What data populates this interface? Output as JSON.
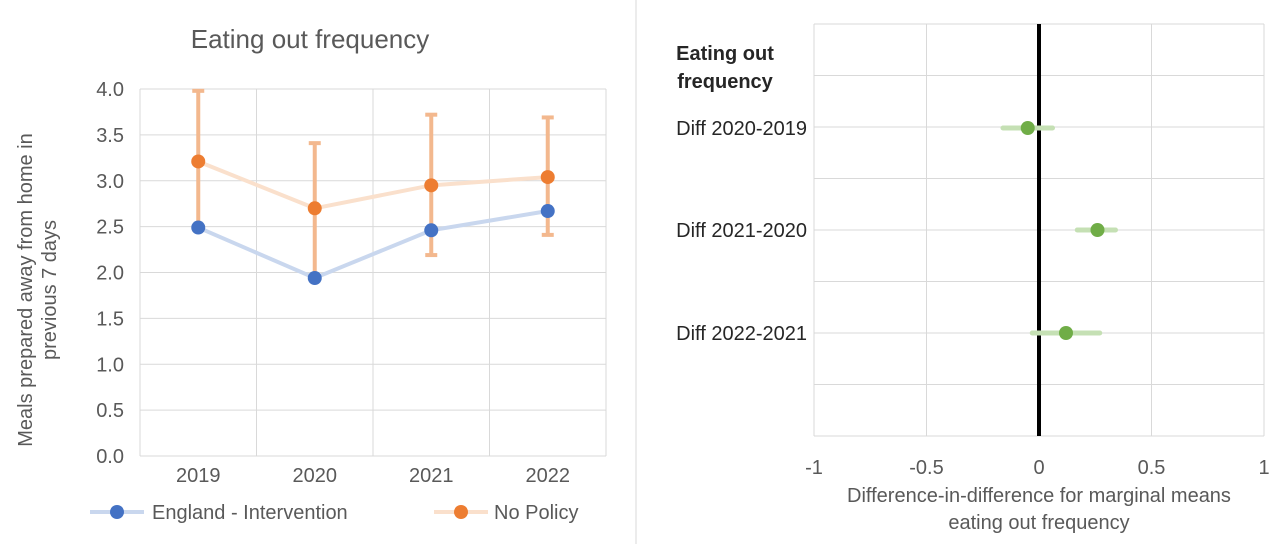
{
  "chart_data": [
    {
      "type": "line",
      "title": "Eating out frequency",
      "xlabel": "",
      "ylabel": "Meals prepared away from home in previous 7 days",
      "ylabel_lines": [
        "Meals prepared away from home in",
        "previous 7 days"
      ],
      "categories": [
        "2019",
        "2020",
        "2021",
        "2022"
      ],
      "ylim": [
        0,
        4
      ],
      "yticks": [
        "0.0",
        "0.5",
        "1.0",
        "1.5",
        "2.0",
        "2.5",
        "3.0",
        "3.5",
        "4.0"
      ],
      "grid": true,
      "legend_position": "bottom",
      "series": [
        {
          "name": "England - Intervention",
          "color": "#4472c4",
          "line_color": "#c9d7ee",
          "values": [
            2.49,
            1.94,
            2.46,
            2.67
          ]
        },
        {
          "name": "No Policy",
          "color": "#ed7d31",
          "line_color": "#fae0cc",
          "values": [
            3.21,
            2.7,
            2.95,
            3.04
          ],
          "error_low": [
            2.47,
            1.96,
            2.19,
            2.41
          ],
          "error_high": [
            3.98,
            3.41,
            3.72,
            3.69
          ],
          "error_color": "#f3b88e"
        }
      ]
    },
    {
      "type": "scatter",
      "title": "Eating out frequency",
      "title_lines": [
        "Eating out",
        "frequency"
      ],
      "xlabel": "Difference-in-difference for marginal means eating out frequency",
      "xlabel_lines": [
        "Difference-in-difference for marginal means",
        "eating out frequency"
      ],
      "categories": [
        "Diff 2020-2019",
        "Diff 2021-2020",
        "Diff 2022-2021"
      ],
      "values": [
        -0.05,
        0.26,
        0.12
      ],
      "ci_low": [
        -0.16,
        0.17,
        -0.03
      ],
      "ci_high": [
        0.06,
        0.34,
        0.27
      ],
      "xlim": [
        -1,
        1
      ],
      "xticks": [
        "-1",
        "-0.5",
        "0",
        "0.5",
        "1"
      ],
      "reference_line": 0,
      "grid": true,
      "point_color": "#70ad47",
      "ci_color": "#c5e0b4"
    }
  ]
}
